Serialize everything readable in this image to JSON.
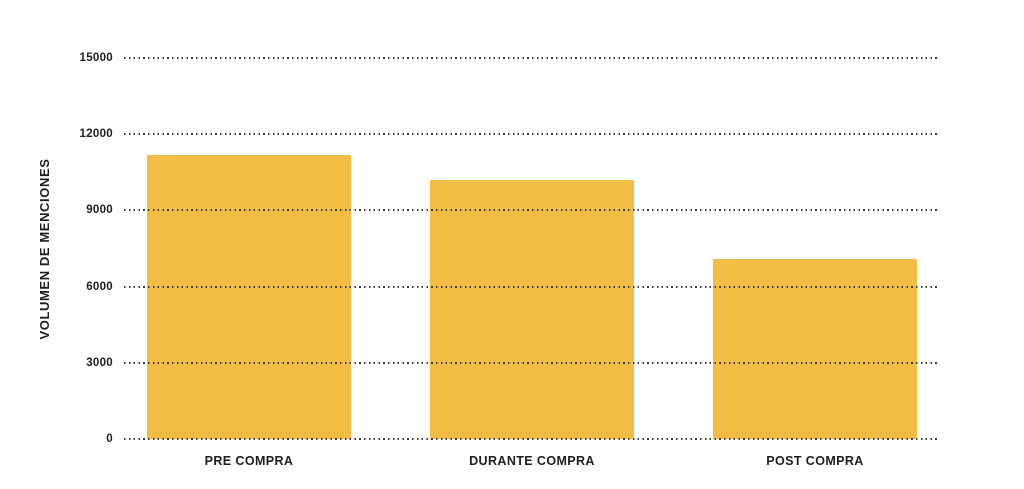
{
  "chart_data": {
    "type": "bar",
    "title": "",
    "xlabel": "",
    "ylabel": "VOLUMEN DE MENCIONES",
    "categories": [
      "PRE COMPRA",
      "DURANTE COMPRA",
      "POST COMPRA"
    ],
    "values": [
      11200,
      10200,
      7100
    ],
    "ylim": [
      0,
      15000
    ],
    "yticks": [
      0,
      3000,
      6000,
      9000,
      12000,
      15000
    ],
    "grid": "horizontal-dotted-over-bars",
    "legend": "none",
    "colors": {
      "bar": "#F2BC45",
      "text": "#1E1E1E",
      "gridline": "#3C3C3C",
      "background": "#FFFFFF"
    }
  }
}
